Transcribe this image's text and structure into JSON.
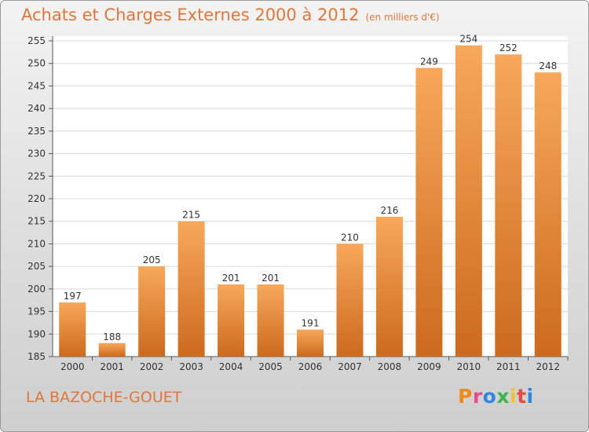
{
  "header": {
    "title": "Achats et Charges Externes 2000 à 2012",
    "subtitle": "(en milliers d'€)"
  },
  "footer": {
    "commune": "LA BAZOCHE-GOUET",
    "logo_text": "Proxiti",
    "logo_colors": [
      "#f08a1c",
      "#e84a8a",
      "#2e86de",
      "#3cb44b",
      "#f2c12e",
      "#e84a3c",
      "#2e86de"
    ]
  },
  "chart_data": {
    "type": "bar",
    "categories": [
      "2000",
      "2001",
      "2002",
      "2003",
      "2004",
      "2005",
      "2006",
      "2007",
      "2008",
      "2009",
      "2010",
      "2011",
      "2012"
    ],
    "values": [
      197,
      188,
      205,
      215,
      201,
      201,
      191,
      210,
      216,
      249,
      254,
      252,
      248
    ],
    "data_labels": [
      "197",
      "188",
      "205",
      "215",
      "201",
      "201",
      "191",
      "210",
      "216",
      "249",
      "254",
      "252",
      "248"
    ],
    "title": "Achats et Charges Externes 2000 à 2012",
    "xlabel": "",
    "ylabel": "",
    "ylim": [
      185,
      255
    ],
    "yticks": [
      185,
      190,
      195,
      200,
      205,
      210,
      215,
      220,
      225,
      230,
      235,
      240,
      245,
      250,
      255
    ],
    "grid": true,
    "legend": "none",
    "colors": {
      "bar_top": "#f7a85a",
      "bar_bottom": "#cc6a1e",
      "grid": "#d8d8d8",
      "plot_bg": "#ffffff"
    }
  }
}
